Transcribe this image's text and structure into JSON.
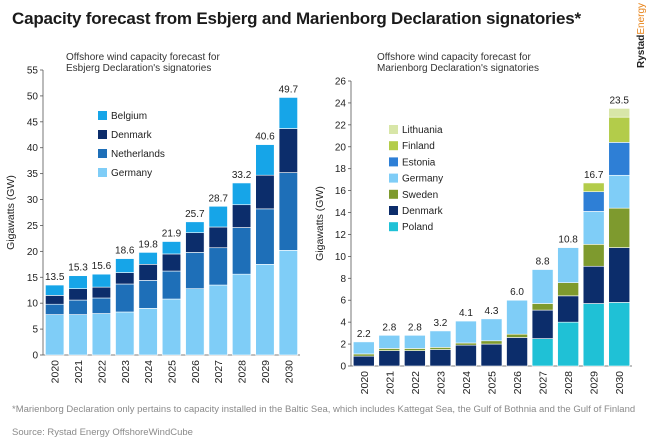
{
  "header": {
    "title": "Capacity forecast from Esbjerg and Marienborg Declaration signatories*",
    "brand_main": "Rystad",
    "brand_accent": "Energy"
  },
  "footnote": "*Marienborg Declaration only pertains to capacity installed in the Baltic Sea, which includes Kattegat Sea, the Gulf of Bothnia and the Gulf of Finland",
  "source": "Source: Rystad Energy OffshoreWindCube",
  "chart_data": [
    {
      "type": "bar",
      "stacked": true,
      "title": "Offshore wind capacity forecast for Esbjerg Declaration's signatories",
      "xlabel": "",
      "ylabel": "Gigawatts (GW)",
      "ylim": [
        0,
        55
      ],
      "yticks": [
        0,
        5,
        10,
        15,
        20,
        25,
        30,
        35,
        40,
        45,
        50,
        55
      ],
      "grid": false,
      "legend_position": "top-left",
      "categories": [
        "2020",
        "2021",
        "2022",
        "2023",
        "2024",
        "2025",
        "2026",
        "2027",
        "2028",
        "2029",
        "2030"
      ],
      "totals": [
        13.5,
        15.3,
        15.6,
        18.6,
        19.8,
        21.9,
        25.7,
        28.7,
        33.2,
        40.6,
        49.7
      ],
      "total_labels": [
        "13.5",
        "15.3",
        "15.6",
        "18.6",
        "19.8",
        "21.9",
        "25.7",
        "28.7",
        "33.2",
        "40.6",
        "49.7"
      ],
      "series": [
        {
          "name": "Germany",
          "color": "#7fcdf7",
          "values": [
            7.8,
            7.8,
            8.0,
            8.3,
            9.0,
            10.8,
            12.8,
            13.5,
            15.6,
            17.5,
            20.2
          ]
        },
        {
          "name": "Netherlands",
          "color": "#1e6fb8",
          "values": [
            2.0,
            2.8,
            3.0,
            5.4,
            5.4,
            5.4,
            7.0,
            7.2,
            9.0,
            10.7,
            15.0
          ]
        },
        {
          "name": "Denmark",
          "color": "#0c2d6b",
          "values": [
            1.7,
            2.2,
            2.1,
            2.2,
            3.1,
            3.3,
            3.8,
            4.0,
            4.4,
            6.5,
            8.5
          ]
        },
        {
          "name": "Belgium",
          "color": "#16a5e8",
          "values": [
            2.0,
            2.5,
            2.5,
            2.7,
            2.3,
            2.4,
            2.1,
            4.0,
            4.2,
            5.9,
            6.0
          ]
        }
      ]
    },
    {
      "type": "bar",
      "stacked": true,
      "title": "Offshore wind capacity forecast for Marienborg Declaration's signatories",
      "xlabel": "",
      "ylabel": "Gigawatts (GW)",
      "ylim": [
        0,
        26
      ],
      "yticks": [
        0,
        2,
        4,
        6,
        8,
        10,
        12,
        14,
        16,
        18,
        20,
        22,
        24,
        26
      ],
      "grid": false,
      "legend_position": "top-left",
      "categories": [
        "2020",
        "2021",
        "2022",
        "2023",
        "2024",
        "2025",
        "2026",
        "2027",
        "2028",
        "2029",
        "2030"
      ],
      "totals": [
        2.2,
        2.8,
        2.8,
        3.2,
        4.1,
        4.3,
        6.0,
        8.8,
        10.8,
        16.7,
        23.5
      ],
      "total_labels": [
        "2.2",
        "2.8",
        "2.8",
        "3.2",
        "4.1",
        "4.3",
        "6.0",
        "8.8",
        "10.8",
        "16.7",
        "23.5"
      ],
      "series": [
        {
          "name": "Poland",
          "color": "#1fc1d6",
          "values": [
            0,
            0,
            0,
            0,
            0,
            0,
            0,
            2.5,
            4.0,
            5.7,
            5.8
          ]
        },
        {
          "name": "Denmark",
          "color": "#0c2d6b",
          "values": [
            0.9,
            1.4,
            1.4,
            1.5,
            1.9,
            2.0,
            2.6,
            2.6,
            2.4,
            3.4,
            5.0
          ]
        },
        {
          "name": "Sweden",
          "color": "#7e9a2e",
          "values": [
            0.2,
            0.2,
            0.2,
            0.2,
            0.2,
            0.3,
            0.3,
            0.6,
            1.2,
            2.0,
            3.6
          ]
        },
        {
          "name": "Germany",
          "color": "#7fcdf7",
          "values": [
            1.1,
            1.2,
            1.2,
            1.5,
            2.0,
            2.0,
            3.1,
            3.1,
            3.2,
            3.0,
            3.0
          ]
        },
        {
          "name": "Estonia",
          "color": "#2e7fd6",
          "values": [
            0,
            0,
            0,
            0,
            0,
            0,
            0,
            0,
            0,
            1.8,
            3.0
          ]
        },
        {
          "name": "Finland",
          "color": "#b3cc4a",
          "values": [
            0,
            0,
            0,
            0,
            0,
            0,
            0,
            0,
            0,
            0.8,
            2.3
          ]
        },
        {
          "name": "Lithuania",
          "color": "#d8e6a8",
          "values": [
            0,
            0,
            0,
            0,
            0,
            0,
            0,
            0,
            0,
            0,
            0.8
          ]
        }
      ],
      "legend_order": [
        "Lithuania",
        "Finland",
        "Estonia",
        "Germany",
        "Sweden",
        "Denmark",
        "Poland"
      ]
    }
  ]
}
